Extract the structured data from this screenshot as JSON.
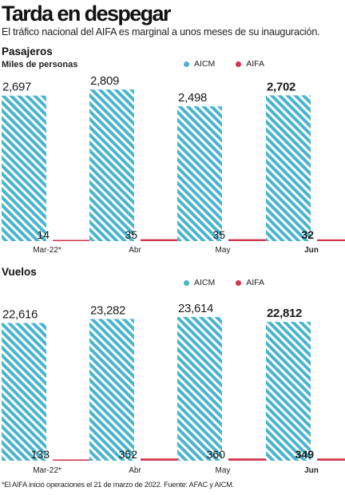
{
  "title": "Tarda en despegar",
  "subtitle": "El tráfico nacional del AIFA es marginal a unos meses de su inauguración.",
  "colors": {
    "aicm": "#49b4cc",
    "aifa": "#d0344a"
  },
  "legend": {
    "aicm": "AICM",
    "aifa": "AIFA"
  },
  "footnote": "*El AIFA inició operaciones el 21 de marzo de 2022. Fuente: AFAC y AICM.",
  "chart_data": [
    {
      "type": "bar",
      "title": "Pasajeros",
      "ylabel": "Miles de personas",
      "categories": [
        "Mar-22*",
        "Abr",
        "May",
        "Jun"
      ],
      "series": [
        {
          "name": "AICM",
          "values": [
            2697,
            2809,
            2498,
            2702
          ],
          "labels": [
            "2,697",
            "2,809",
            "2,498",
            "2,702"
          ]
        },
        {
          "name": "AIFA",
          "values": [
            14,
            35,
            35,
            32
          ],
          "labels": [
            "14",
            "35",
            "35",
            "32"
          ]
        }
      ],
      "ylim": [
        0,
        2900
      ],
      "grid": false,
      "legend_position": "top-right"
    },
    {
      "type": "bar",
      "title": "Vuelos",
      "ylabel": "",
      "categories": [
        "Mar-22*",
        "Abr",
        "May",
        "Jun"
      ],
      "series": [
        {
          "name": "AICM",
          "values": [
            22616,
            23282,
            23614,
            22812
          ],
          "labels": [
            "22,616",
            "23,282",
            "23,614",
            "22,812"
          ]
        },
        {
          "name": "AIFA",
          "values": [
            133,
            352,
            360,
            349
          ],
          "labels": [
            "133",
            "352",
            "360",
            "349"
          ]
        }
      ],
      "ylim": [
        0,
        24400
      ],
      "grid": false,
      "legend_position": "top-right"
    }
  ]
}
